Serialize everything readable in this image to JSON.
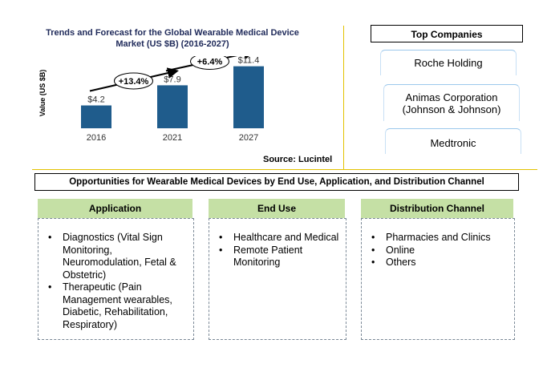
{
  "chart_data": {
    "type": "bar",
    "title": "Trends and Forecast for the Global Wearable Medical Device Market  (US $B) (2016-2027)",
    "ylabel": "Value (US $B)",
    "xlabel": "",
    "categories": [
      "2016",
      "2021",
      "2027"
    ],
    "values": [
      4.2,
      7.9,
      11.4
    ],
    "data_labels": [
      "$4.2",
      "$7.9",
      "$11.4"
    ],
    "bar_color": "#1f5c8c",
    "annotations": [
      {
        "label": "+13.4%",
        "from": "2016",
        "to": "2021"
      },
      {
        "label": "+6.4%",
        "from": "2021",
        "to": "2027"
      }
    ],
    "ylim": [
      0,
      14
    ],
    "grid": false,
    "source": "Source: Lucintel"
  },
  "top_companies": {
    "header": "Top Companies",
    "items": [
      "Roche Holding",
      "Animas Corporation (Johnson & Johnson)",
      "Medtronic"
    ]
  },
  "opportunities": {
    "header": "Opportunities for Wearable Medical Devices by End Use, Application, and Distribution Channel",
    "columns": [
      {
        "header": "Application",
        "items": [
          "Diagnostics (Vital Sign Monitoring, Neuromodulation, Fetal & Obstetric)",
          "Therapeutic (Pain Management wearables, Diabetic, Rehabilitation, Respiratory)"
        ]
      },
      {
        "header": "End Use",
        "items": [
          "Healthcare and Medical",
          "Remote Patient Monitoring"
        ]
      },
      {
        "header": "Distribution Channel",
        "items": [
          "Pharmacies and Clinics",
          "Online",
          "Others"
        ]
      }
    ]
  },
  "colors": {
    "divider": "#e3c200",
    "column_header_bg": "#c5e0a5",
    "title_text": "#1f2a5a"
  }
}
